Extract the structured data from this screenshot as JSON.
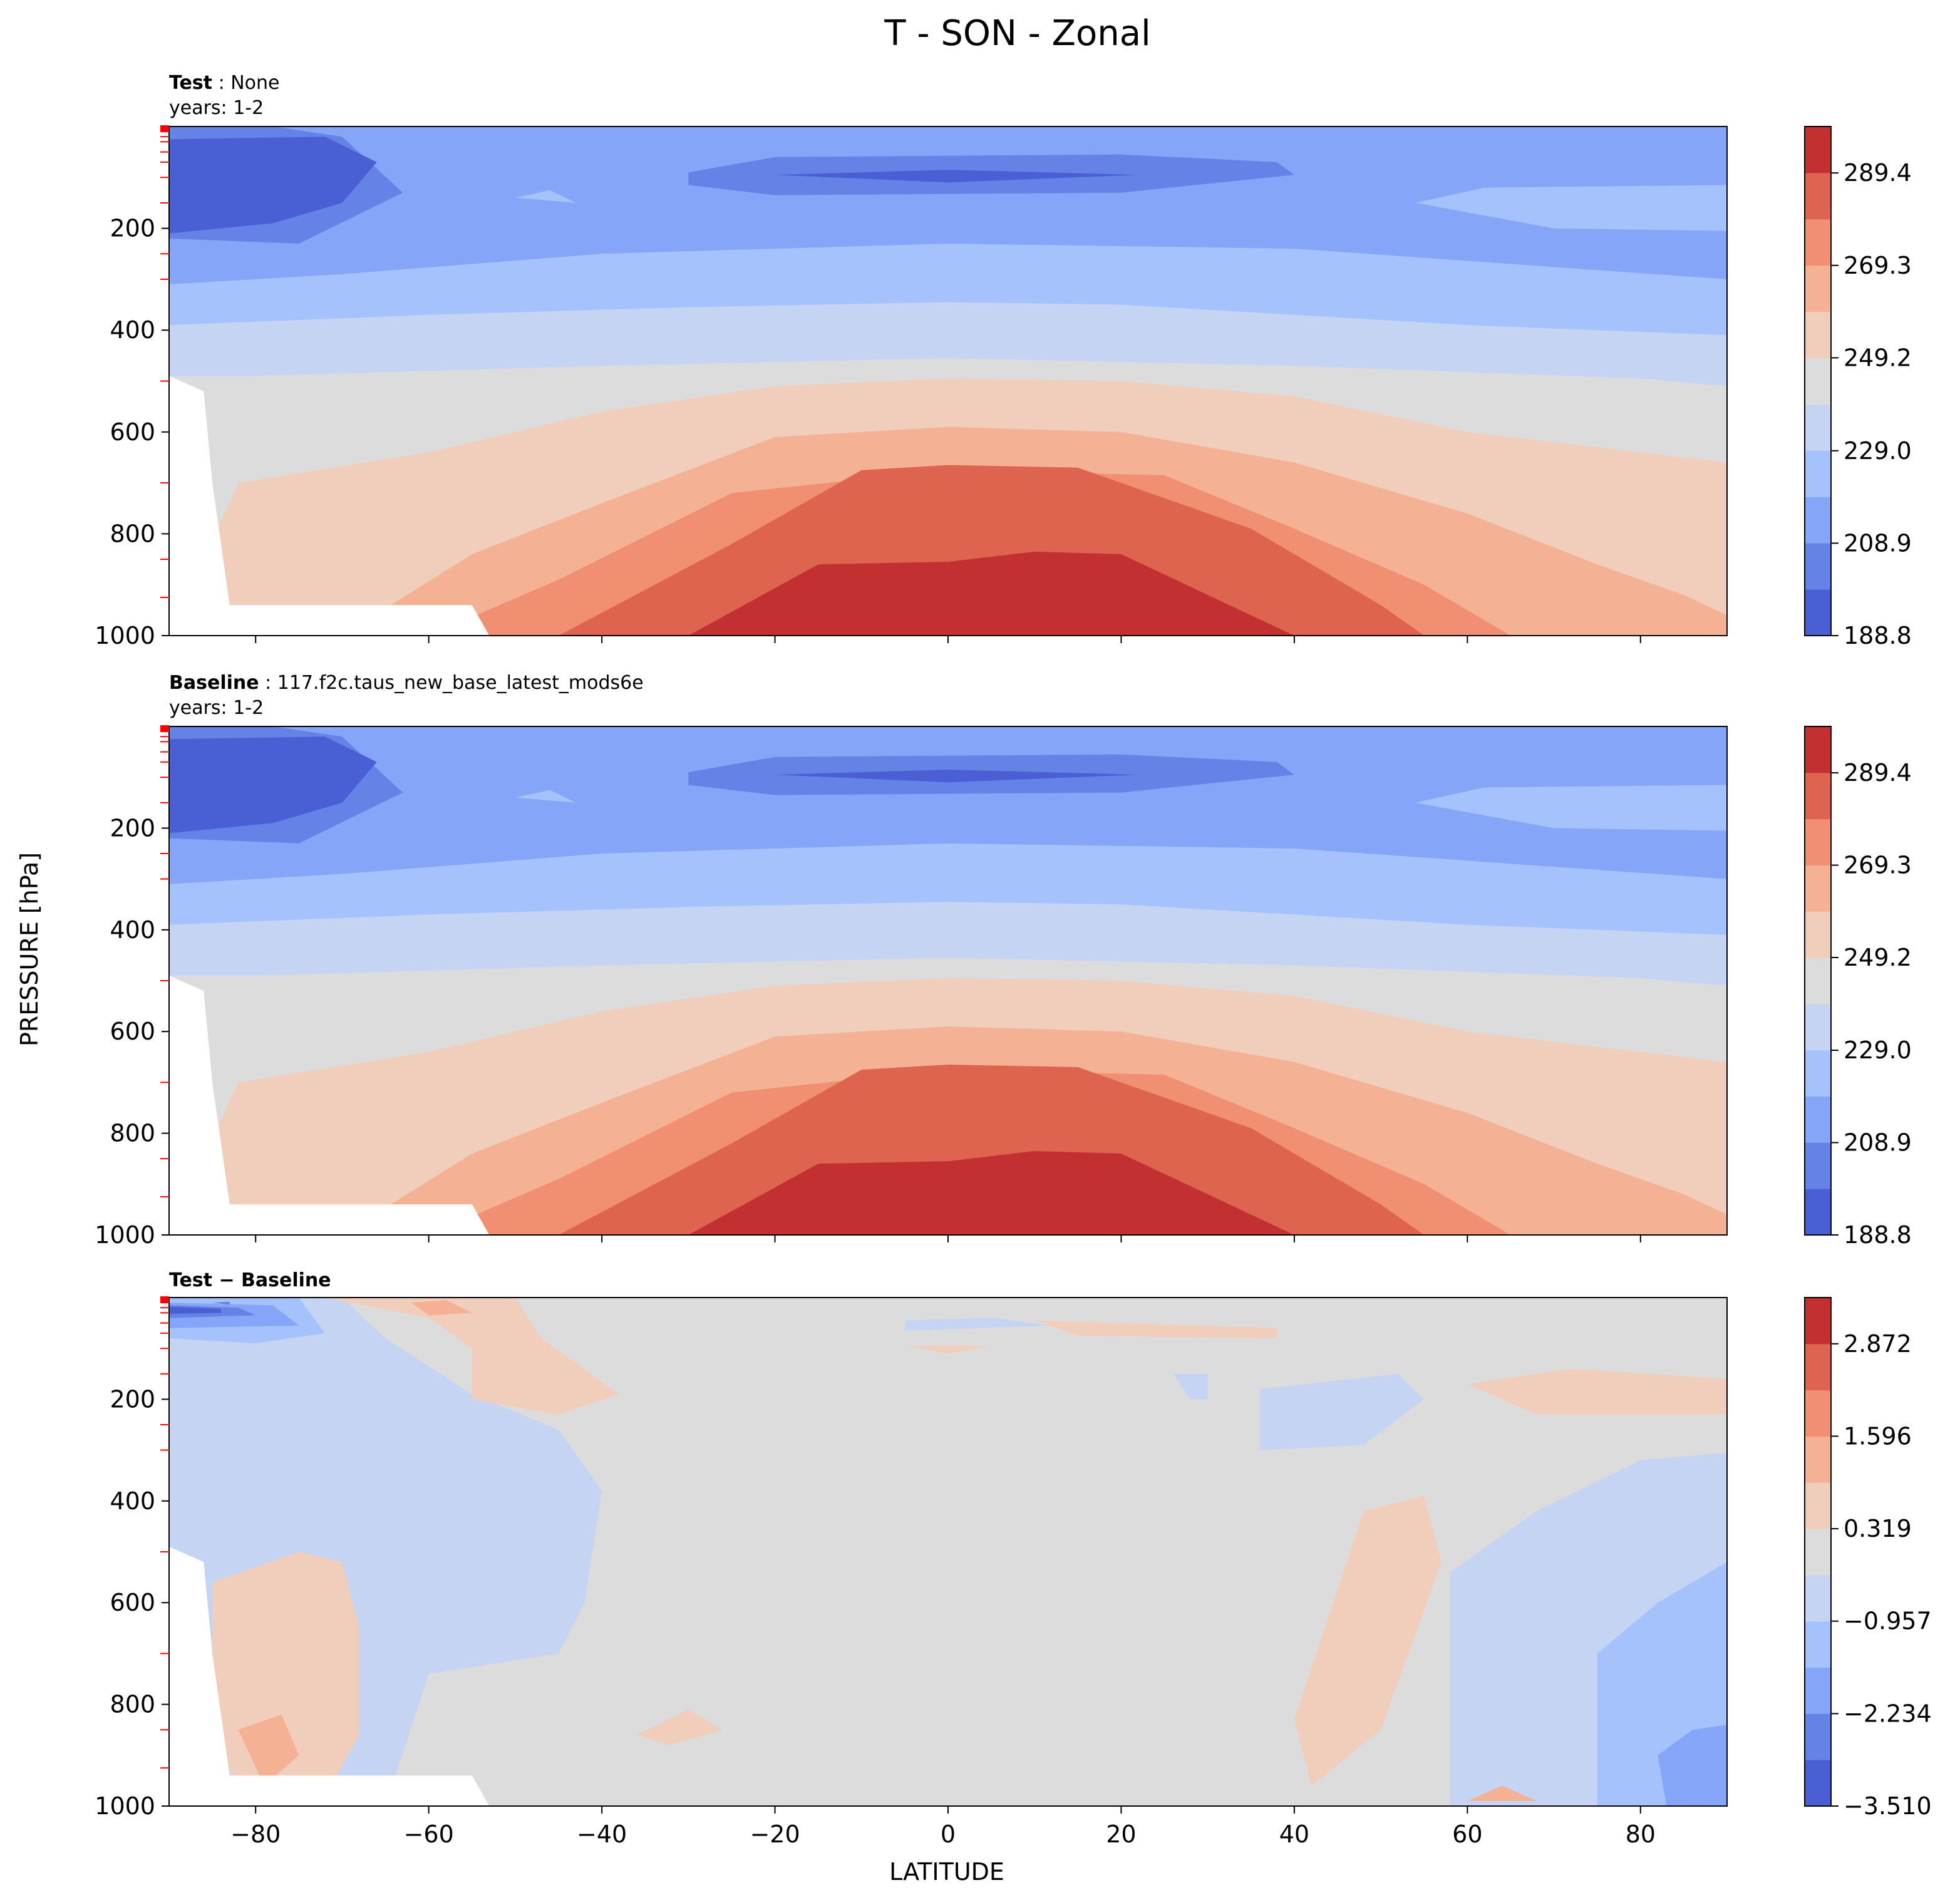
{
  "figure": {
    "title": "T - SON - Zonal",
    "xlabel": "LATITUDE",
    "ylabel": "PRESSURE [hPa]"
  },
  "chart_data": [
    {
      "type": "heatmap",
      "panel": "test",
      "title_bold": "Test",
      "title_sep": ":",
      "title_rest": " None",
      "subtitle": "years: 1-2",
      "xlim": [
        -90,
        90
      ],
      "ylim": [
        1000,
        0
      ],
      "x_ticks": [
        -80,
        -60,
        -40,
        -20,
        0,
        20,
        40,
        60,
        80
      ],
      "y_ticks": [
        200,
        400,
        600,
        800,
        1000
      ],
      "colorbar": {
        "min": 188.8,
        "max": 299.5,
        "ticks": [
          "188.8",
          "208.9",
          "229.0",
          "249.2",
          "269.3",
          "289.4"
        ],
        "tick_values": [
          188.8,
          208.9,
          229.0,
          249.2,
          269.3,
          289.4
        ],
        "n_levels": 11
      }
    },
    {
      "type": "heatmap",
      "panel": "baseline",
      "title_bold": "Baseline",
      "title_sep": ":",
      "title_rest": " 117.f2c.taus_new_base_latest_mods6e",
      "subtitle": "years: 1-2",
      "xlim": [
        -90,
        90
      ],
      "ylim": [
        1000,
        0
      ],
      "x_ticks": [
        -80,
        -60,
        -40,
        -20,
        0,
        20,
        40,
        60,
        80
      ],
      "y_ticks": [
        200,
        400,
        600,
        800,
        1000
      ],
      "colorbar": {
        "min": 188.8,
        "max": 299.5,
        "ticks": [
          "188.8",
          "208.9",
          "229.0",
          "249.2",
          "269.3",
          "289.4"
        ],
        "tick_values": [
          188.8,
          208.9,
          229.0,
          249.2,
          269.3,
          289.4
        ],
        "n_levels": 11
      }
    },
    {
      "type": "heatmap",
      "panel": "diff",
      "title_bold": "Test − Baseline",
      "title_sep": "",
      "title_rest": "",
      "subtitle": "",
      "xlim": [
        -90,
        90
      ],
      "ylim": [
        1000,
        0
      ],
      "x_ticks": [
        -80,
        -60,
        -40,
        -20,
        0,
        20,
        40,
        60,
        80
      ],
      "x_tick_labels": [
        "−80",
        "−60",
        "−40",
        "−20",
        "0",
        "20",
        "40",
        "60",
        "80"
      ],
      "y_ticks": [
        200,
        400,
        600,
        800,
        1000
      ],
      "colorbar": {
        "min": -3.51,
        "max": 3.51,
        "ticks": [
          "−3.510",
          "−2.234",
          "−0.957",
          "0.319",
          "1.596",
          "2.872"
        ],
        "tick_values": [
          -3.51,
          -2.234,
          -0.957,
          0.319,
          1.596,
          2.872
        ],
        "n_levels": 11
      }
    }
  ],
  "colors": {
    "scale": [
      "#4a5fd4",
      "#6583e6",
      "#85a5f8",
      "#a6c2fd",
      "#c4d4f2",
      "#dcdcdc",
      "#f1cdbb",
      "#f5b193",
      "#f08f71",
      "#de6450",
      "#c33031"
    ],
    "minor_tick": "#ff0000"
  }
}
